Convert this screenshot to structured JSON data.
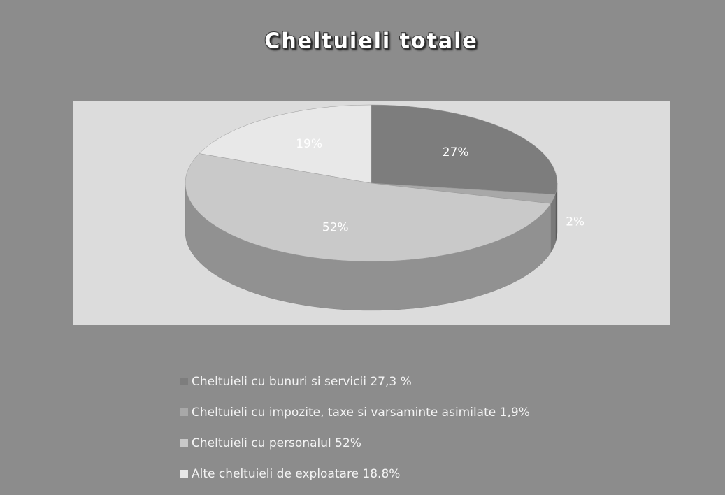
{
  "chart_data": {
    "type": "pie",
    "title": "Cheltuieli totale",
    "categories": [
      "Cheltuieli cu bunuri si servicii 27,3 %",
      "Cheltuieli cu impozite, taxe si varsaminte asimilate 1,9%",
      "Cheltuieli cu personalul 52%",
      "Alte cheltuieli de exploatare 18.8%"
    ],
    "values": [
      27.3,
      1.9,
      52,
      18.8
    ],
    "value_labels": [
      "27%",
      "2%",
      "52%",
      "19%"
    ],
    "colors": [
      "#7d7d7d",
      "#a8a8a8",
      "#c9c9c9",
      "#e8e8e8"
    ]
  }
}
